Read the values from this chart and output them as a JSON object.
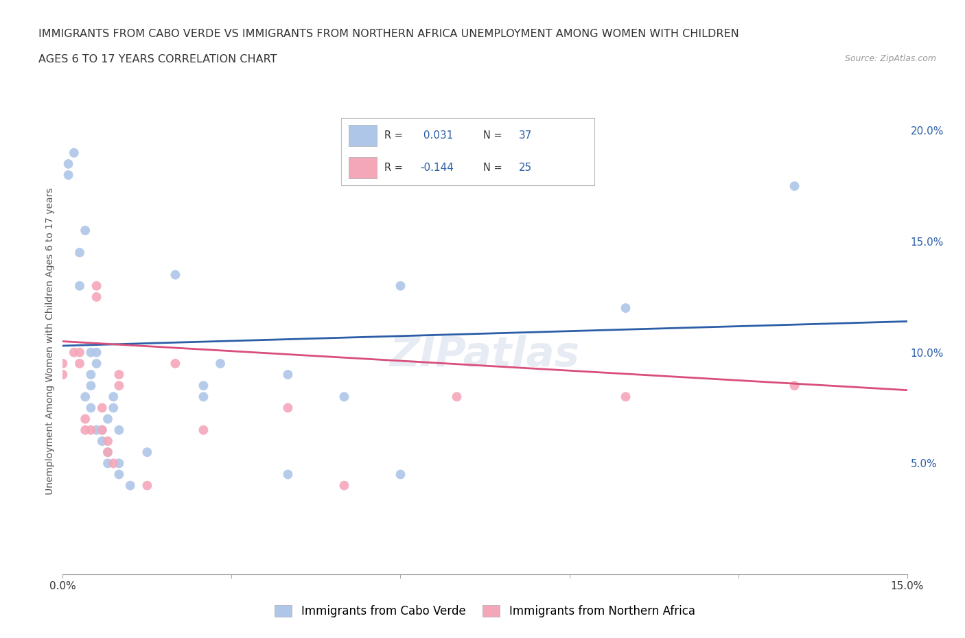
{
  "title_line1": "IMMIGRANTS FROM CABO VERDE VS IMMIGRANTS FROM NORTHERN AFRICA UNEMPLOYMENT AMONG WOMEN WITH CHILDREN",
  "title_line2": "AGES 6 TO 17 YEARS CORRELATION CHART",
  "source": "Source: ZipAtlas.com",
  "ylabel": "Unemployment Among Women with Children Ages 6 to 17 years",
  "xlim": [
    0.0,
    0.15
  ],
  "ylim": [
    0.0,
    0.21
  ],
  "x_ticks": [
    0.0,
    0.03,
    0.06,
    0.09,
    0.12,
    0.15
  ],
  "x_tick_labels": [
    "0.0%",
    "",
    "",
    "",
    "",
    "15.0%"
  ],
  "y_ticks_right": [
    0.05,
    0.1,
    0.15,
    0.2
  ],
  "y_tick_labels_right": [
    "5.0%",
    "10.0%",
    "15.0%",
    "20.0%"
  ],
  "cabo_verde_R": 0.031,
  "cabo_verde_N": 37,
  "northern_africa_R": -0.144,
  "northern_africa_N": 25,
  "cabo_verde_color": "#aec6e8",
  "northern_africa_color": "#f4a7b9",
  "cabo_verde_line_color": "#2b5ea7",
  "northern_africa_line_color": "#d94f7a",
  "legend_label_1": "Immigrants from Cabo Verde",
  "legend_label_2": "Immigrants from Northern Africa",
  "watermark": "ZIPatlas",
  "cabo_verde_x": [
    0.001,
    0.001,
    0.002,
    0.003,
    0.003,
    0.004,
    0.004,
    0.005,
    0.005,
    0.005,
    0.005,
    0.006,
    0.006,
    0.006,
    0.007,
    0.007,
    0.008,
    0.008,
    0.008,
    0.009,
    0.009,
    0.01,
    0.01,
    0.01,
    0.012,
    0.015,
    0.02,
    0.025,
    0.025,
    0.028,
    0.04,
    0.04,
    0.05,
    0.06,
    0.06,
    0.1,
    0.13
  ],
  "cabo_verde_y": [
    0.185,
    0.18,
    0.19,
    0.13,
    0.145,
    0.155,
    0.08,
    0.09,
    0.1,
    0.085,
    0.075,
    0.1,
    0.095,
    0.065,
    0.065,
    0.06,
    0.055,
    0.05,
    0.07,
    0.08,
    0.075,
    0.065,
    0.05,
    0.045,
    0.04,
    0.055,
    0.135,
    0.08,
    0.085,
    0.095,
    0.09,
    0.045,
    0.08,
    0.13,
    0.045,
    0.12,
    0.175
  ],
  "northern_africa_x": [
    0.0,
    0.0,
    0.002,
    0.003,
    0.003,
    0.004,
    0.004,
    0.005,
    0.006,
    0.006,
    0.007,
    0.007,
    0.008,
    0.008,
    0.009,
    0.01,
    0.01,
    0.015,
    0.02,
    0.025,
    0.04,
    0.05,
    0.07,
    0.1,
    0.13
  ],
  "northern_africa_y": [
    0.095,
    0.09,
    0.1,
    0.1,
    0.095,
    0.065,
    0.07,
    0.065,
    0.13,
    0.125,
    0.075,
    0.065,
    0.06,
    0.055,
    0.05,
    0.09,
    0.085,
    0.04,
    0.095,
    0.065,
    0.075,
    0.04,
    0.08,
    0.08,
    0.085
  ],
  "background_color": "#ffffff",
  "grid_color": "#cccccc",
  "cv_trend_x0": 0.0,
  "cv_trend_y0": 0.103,
  "cv_trend_x1": 0.15,
  "cv_trend_y1": 0.114,
  "na_trend_x0": 0.0,
  "na_trend_y0": 0.105,
  "na_trend_x1": 0.15,
  "na_trend_y1": 0.083
}
